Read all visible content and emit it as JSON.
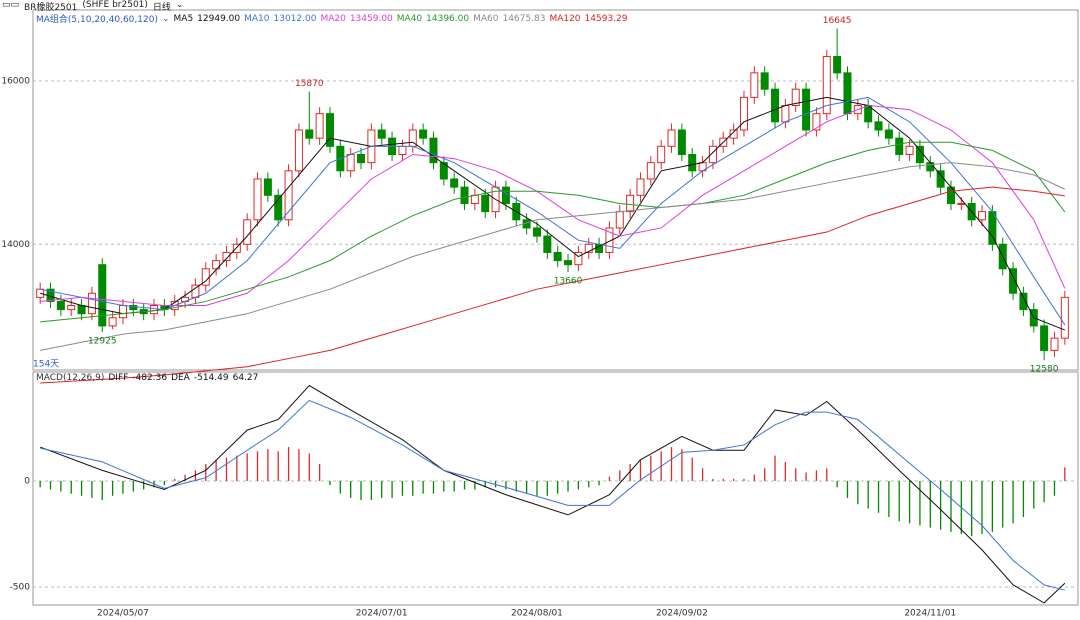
{
  "toolbar": {
    "symbol": "BR橡胶2501",
    "code": "(SHFE br2501)",
    "period": "日线"
  },
  "chart_data": [
    {
      "type": "candlestick",
      "up_color": "#e02828",
      "down_color": "#008a00",
      "grid": true,
      "ylim": [
        12460,
        16870
      ],
      "yticks": [
        14000,
        16000
      ],
      "period_label": "154天",
      "ma_title": "MA组合(5,10,20,40,60,120)",
      "annotated_highs": [
        26,
        77
      ],
      "annotated_lows": [
        6,
        51,
        97
      ],
      "categories": [
        null,
        null,
        null,
        null,
        null,
        null,
        null,
        null,
        "2024/05/07",
        null,
        null,
        null,
        null,
        null,
        null,
        null,
        null,
        null,
        null,
        null,
        null,
        null,
        null,
        null,
        null,
        null,
        null,
        null,
        null,
        null,
        null,
        null,
        null,
        "2024/07/01",
        null,
        null,
        null,
        null,
        null,
        null,
        null,
        null,
        null,
        null,
        null,
        null,
        null,
        null,
        "2024/08/01",
        null,
        null,
        null,
        null,
        null,
        null,
        null,
        null,
        null,
        null,
        null,
        null,
        null,
        "2024/09/02",
        null,
        null,
        null,
        null,
        null,
        null,
        null,
        null,
        null,
        null,
        null,
        null,
        null,
        null,
        null,
        null,
        null,
        null,
        null,
        null,
        null,
        null,
        null,
        "2024/11/01",
        null,
        null,
        null,
        null,
        null,
        null,
        null,
        null,
        null,
        null,
        null,
        null,
        null
      ],
      "open": [
        13350,
        13450,
        13300,
        13200,
        13250,
        13150,
        13750,
        13000,
        13100,
        13250,
        13200,
        13150,
        13250,
        13200,
        13300,
        13350,
        13500,
        13700,
        13800,
        13900,
        14000,
        14300,
        14800,
        14600,
        14300,
        14900,
        15400,
        15300,
        15600,
        15200,
        14900,
        15100,
        15000,
        15400,
        15300,
        15100,
        15200,
        15400,
        15300,
        15000,
        14800,
        14700,
        14500,
        14600,
        14400,
        14700,
        14500,
        14300,
        14200,
        14100,
        13900,
        13800,
        13750,
        13900,
        14000,
        13900,
        14200,
        14400,
        14600,
        14800,
        15000,
        15200,
        15400,
        15100,
        14900,
        15000,
        15200,
        15300,
        15400,
        15800,
        16100,
        15900,
        15500,
        15700,
        15900,
        15400,
        15600,
        16300,
        16100,
        15600,
        15700,
        15500,
        15400,
        15300,
        15100,
        15200,
        15000,
        14900,
        14700,
        14500,
        14500,
        14300,
        14400,
        14000,
        13700,
        13400,
        13200,
        13000,
        12700,
        12850
      ],
      "close": [
        13450,
        13300,
        13200,
        13250,
        13150,
        13400,
        13000,
        13100,
        13250,
        13200,
        13150,
        13250,
        13200,
        13300,
        13350,
        13500,
        13700,
        13800,
        13900,
        14000,
        14300,
        14800,
        14600,
        14300,
        14900,
        15400,
        15300,
        15600,
        15200,
        14900,
        15100,
        15000,
        15400,
        15300,
        15100,
        15200,
        15400,
        15300,
        15000,
        14800,
        14700,
        14500,
        14600,
        14400,
        14700,
        14500,
        14300,
        14200,
        14100,
        13900,
        13800,
        13750,
        13900,
        14000,
        13900,
        14200,
        14400,
        14600,
        14800,
        15000,
        15200,
        15400,
        15100,
        14900,
        15000,
        15200,
        15300,
        15400,
        15800,
        16100,
        15900,
        15500,
        15700,
        15900,
        15400,
        15600,
        16300,
        16100,
        15600,
        15700,
        15500,
        15400,
        15300,
        15100,
        15200,
        15000,
        14900,
        14700,
        14500,
        14500,
        14300,
        14400,
        14000,
        13700,
        13400,
        13200,
        13000,
        12700,
        12850,
        13350
      ],
      "high": [
        13530,
        13530,
        13380,
        13330,
        13330,
        13480,
        13830,
        13180,
        13330,
        13330,
        13280,
        13330,
        13330,
        13380,
        13430,
        13580,
        13780,
        13880,
        13980,
        14080,
        14380,
        14880,
        14880,
        14680,
        14980,
        15480,
        15870,
        15680,
        15680,
        15280,
        15180,
        15180,
        15480,
        15480,
        15380,
        15280,
        15480,
        15480,
        15380,
        15080,
        14880,
        14780,
        14680,
        14680,
        14780,
        14780,
        14580,
        14380,
        14280,
        14180,
        13980,
        13880,
        13980,
        14080,
        14080,
        14280,
        14480,
        14680,
        14880,
        15080,
        15280,
        15480,
        15480,
        15180,
        15080,
        15280,
        15380,
        15480,
        15880,
        16180,
        16180,
        15980,
        15780,
        15980,
        15980,
        15680,
        16380,
        16645,
        16180,
        15780,
        15780,
        15580,
        15480,
        15380,
        15280,
        15280,
        15080,
        14980,
        14780,
        14580,
        14580,
        14480,
        14480,
        14080,
        13780,
        13480,
        13280,
        13080,
        12930,
        13430
      ],
      "low": [
        13270,
        13220,
        13120,
        13120,
        13070,
        13070,
        12925,
        12960,
        13020,
        13120,
        13070,
        13070,
        13120,
        13120,
        13220,
        13270,
        13420,
        13620,
        13720,
        13820,
        13920,
        14220,
        14520,
        14220,
        14220,
        14820,
        15220,
        15220,
        15120,
        14820,
        14820,
        14920,
        14920,
        15220,
        15020,
        15020,
        15120,
        15220,
        14920,
        14720,
        14620,
        14420,
        14420,
        14320,
        14320,
        14420,
        14220,
        14120,
        14020,
        13820,
        13720,
        13660,
        13670,
        13820,
        13820,
        13820,
        14120,
        14320,
        14520,
        14720,
        14920,
        15120,
        15020,
        14820,
        14820,
        14920,
        15120,
        15220,
        15320,
        15720,
        15820,
        15420,
        15420,
        15620,
        15320,
        15320,
        15520,
        16020,
        15520,
        15520,
        15420,
        15320,
        15220,
        15020,
        15020,
        14920,
        14820,
        14620,
        14420,
        14420,
        14220,
        14220,
        13920,
        13620,
        13320,
        13120,
        12920,
        12580,
        12620,
        12770
      ],
      "ma_series": [
        {
          "name": "MA5",
          "color": "#111111",
          "value_label": "12949.00",
          "x": [
            0,
            4,
            8,
            12,
            16,
            20,
            24,
            28,
            32,
            36,
            40,
            44,
            48,
            52,
            56,
            60,
            64,
            68,
            72,
            76,
            80,
            84,
            88,
            92,
            96,
            99
          ],
          "values": [
            13400,
            13250,
            13150,
            13200,
            13550,
            14100,
            14700,
            15300,
            15200,
            15250,
            14900,
            14550,
            14250,
            13850,
            14100,
            14900,
            15000,
            15500,
            15700,
            15800,
            15700,
            15300,
            14700,
            14100,
            13100,
            12949
          ]
        },
        {
          "name": "MA10",
          "color": "#3f73d8",
          "value_label": "13012.00",
          "x": [
            0,
            4,
            8,
            12,
            16,
            20,
            24,
            28,
            32,
            36,
            40,
            44,
            48,
            52,
            56,
            60,
            64,
            68,
            72,
            76,
            80,
            84,
            88,
            92,
            96,
            99
          ],
          "values": [
            13450,
            13350,
            13250,
            13200,
            13400,
            13800,
            14400,
            15000,
            15200,
            15200,
            15000,
            14700,
            14400,
            14050,
            13950,
            14500,
            14900,
            15200,
            15500,
            15700,
            15800,
            15500,
            15000,
            14400,
            13600,
            13012
          ]
        },
        {
          "name": "MA20",
          "color": "#e03ce0",
          "value_label": "13459.00",
          "x": [
            0,
            4,
            8,
            12,
            16,
            20,
            24,
            28,
            32,
            36,
            40,
            44,
            48,
            52,
            56,
            60,
            64,
            68,
            72,
            76,
            80,
            84,
            88,
            92,
            96,
            99
          ],
          "values": [
            13300,
            13350,
            13300,
            13250,
            13250,
            13400,
            13800,
            14300,
            14800,
            15100,
            15050,
            14900,
            14650,
            14300,
            14100,
            14200,
            14600,
            14900,
            15200,
            15500,
            15700,
            15650,
            15400,
            15000,
            14300,
            13459
          ]
        },
        {
          "name": "MA40",
          "color": "#2a9a2a",
          "value_label": "14396.00",
          "x": [
            0,
            4,
            8,
            12,
            16,
            20,
            24,
            28,
            32,
            36,
            40,
            44,
            48,
            52,
            56,
            60,
            64,
            68,
            72,
            76,
            80,
            84,
            88,
            92,
            96,
            99
          ],
          "values": [
            13050,
            13100,
            13150,
            13200,
            13300,
            13450,
            13600,
            13800,
            14100,
            14350,
            14550,
            14650,
            14650,
            14600,
            14500,
            14450,
            14500,
            14600,
            14800,
            15000,
            15150,
            15250,
            15250,
            15150,
            14900,
            14396
          ]
        },
        {
          "name": "MA60",
          "color": "#8a8a8a",
          "value_label": "14675.83",
          "x": [
            0,
            4,
            8,
            12,
            16,
            20,
            24,
            28,
            32,
            36,
            40,
            44,
            48,
            52,
            56,
            60,
            64,
            68,
            72,
            76,
            80,
            84,
            88,
            92,
            96,
            99
          ],
          "values": [
            12700,
            12800,
            12900,
            12950,
            13050,
            13150,
            13300,
            13450,
            13650,
            13850,
            14000,
            14150,
            14300,
            14350,
            14400,
            14450,
            14500,
            14550,
            14650,
            14750,
            14850,
            14950,
            15000,
            14950,
            14850,
            14675.83
          ]
        },
        {
          "name": "MA120",
          "color": "#e02020",
          "value_label": "14593.29",
          "x": [
            0,
            4,
            8,
            12,
            16,
            20,
            24,
            28,
            32,
            36,
            40,
            44,
            48,
            52,
            56,
            60,
            64,
            68,
            72,
            76,
            80,
            84,
            88,
            92,
            96,
            99
          ],
          "values": [
            12300,
            12330,
            12360,
            12400,
            12450,
            12500,
            12600,
            12700,
            12850,
            13000,
            13150,
            13300,
            13450,
            13550,
            13650,
            13750,
            13850,
            13950,
            14050,
            14150,
            14350,
            14500,
            14650,
            14700,
            14650,
            14593.29
          ]
        }
      ]
    },
    {
      "type": "macd",
      "title": "MACD(12,26,9)",
      "ylim": [
        -585,
        514
      ],
      "yticks": [
        -500,
        0
      ],
      "series": [
        {
          "name": "DIFF",
          "color": "#111111",
          "x": [
            0,
            6,
            12,
            16,
            20,
            23,
            26,
            30,
            35,
            39,
            45,
            51,
            55,
            58,
            62,
            65,
            68,
            71,
            74,
            76,
            79,
            83,
            87,
            91,
            94,
            97,
            99
          ],
          "values": [
            160,
            50,
            -40,
            50,
            240,
            290,
            450,
            335,
            195,
            50,
            -65,
            -160,
            -65,
            100,
            210,
            145,
            145,
            335,
            310,
            375,
            240,
            50,
            -135,
            -325,
            -490,
            -575,
            -482.36
          ]
        },
        {
          "name": "DEA",
          "color": "#3f73d8",
          "x": [
            0,
            6,
            12,
            16,
            20,
            23,
            26,
            30,
            35,
            39,
            45,
            51,
            55,
            58,
            62,
            65,
            68,
            71,
            74,
            76,
            79,
            83,
            87,
            91,
            94,
            97,
            99
          ],
          "values": [
            155,
            90,
            -35,
            15,
            145,
            240,
            380,
            300,
            170,
            50,
            -30,
            -115,
            -115,
            5,
            135,
            145,
            170,
            265,
            325,
            325,
            290,
            125,
            -40,
            -210,
            -375,
            -490,
            -514.49
          ]
        }
      ],
      "histogram": {
        "up_color": "#e02828",
        "down_color": "#008a00",
        "values": [
          -30,
          -40,
          -50,
          -60,
          -70,
          -80,
          -90,
          -70,
          -60,
          -50,
          -40,
          -30,
          -20,
          10,
          30,
          50,
          80,
          100,
          110,
          120,
          130,
          140,
          150,
          140,
          160,
          150,
          130,
          80,
          -20,
          -60,
          -80,
          -90,
          -90,
          -80,
          -80,
          -70,
          -70,
          -60,
          -60,
          -50,
          -50,
          -40,
          -40,
          -30,
          -30,
          -40,
          -50,
          -60,
          -70,
          -70,
          -60,
          -50,
          -40,
          -30,
          -20,
          20,
          50,
          80,
          100,
          120,
          140,
          160,
          150,
          110,
          60,
          10,
          10,
          10,
          10,
          30,
          60,
          120,
          90,
          60,
          40,
          50,
          60,
          -30,
          -80,
          -110,
          -130,
          -150,
          -170,
          -190,
          -200,
          -210,
          -220,
          -230,
          -240,
          -250,
          -260,
          -250,
          -240,
          -220,
          -200,
          -170,
          -130,
          -100,
          -70,
          64.27
        ]
      }
    }
  ]
}
